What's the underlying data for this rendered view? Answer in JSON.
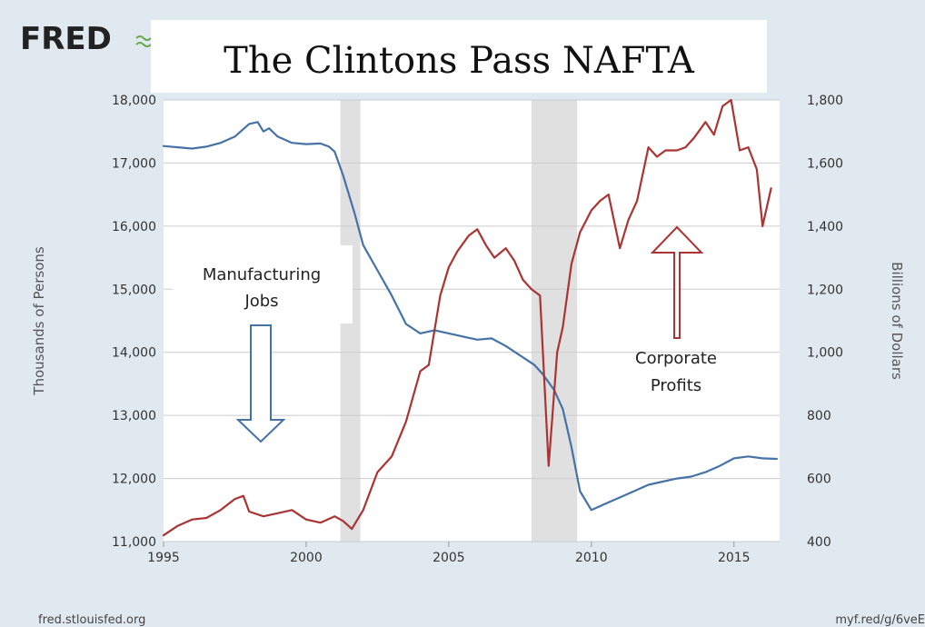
{
  "header": {
    "logo_text": "FRED",
    "title": "The Clintons Pass NAFTA"
  },
  "footer": {
    "source": "fred.stlouisfed.org",
    "short_url": "myf.red/g/6veE"
  },
  "annotations": {
    "jobs_line1": "Manufacturing",
    "jobs_line2": "Jobs",
    "profits_line1": "Corporate",
    "profits_line2": "Profits"
  },
  "colors": {
    "background": "#e1e9f0",
    "plot": "#ffffff",
    "recession": "#e0e0e0",
    "jobs": "#4572a7",
    "profits": "#aa3333"
  },
  "chart_data": {
    "type": "line",
    "title": "The Clintons Pass NAFTA",
    "y_left_label": "Thousands of Persons",
    "y_right_label": "Billions of Dollars",
    "xlim": [
      1995,
      2016.6
    ],
    "y_left_lim": [
      11000,
      18000
    ],
    "y_right_lim": [
      400,
      1800
    ],
    "x_ticks": [
      1995,
      2000,
      2005,
      2010,
      2015
    ],
    "y_left_ticks": [
      "11,000",
      "12,000",
      "13,000",
      "14,000",
      "15,000",
      "16,000",
      "17,000",
      "18,000"
    ],
    "y_right_ticks": [
      "400",
      "600",
      "800",
      "1,000",
      "1,200",
      "1,400",
      "1,600",
      "1,800"
    ],
    "recessions": [
      [
        2001.2,
        2001.9
      ],
      [
        2007.9,
        2009.5
      ]
    ],
    "grid": true,
    "series": [
      {
        "name": "Manufacturing Jobs",
        "axis": "left",
        "color": "#4572a7",
        "x": [
          1995.0,
          1995.5,
          1996.0,
          1996.5,
          1997.0,
          1997.5,
          1998.0,
          1998.3,
          1998.5,
          1998.7,
          1999.0,
          1999.5,
          2000.0,
          2000.5,
          2000.8,
          2001.0,
          2001.3,
          2001.7,
          2002.0,
          2002.5,
          2003.0,
          2003.5,
          2004.0,
          2004.5,
          2005.0,
          2005.5,
          2006.0,
          2006.5,
          2007.0,
          2007.5,
          2008.0,
          2008.3,
          2008.7,
          2009.0,
          2009.3,
          2009.6,
          2010.0,
          2010.5,
          2011.0,
          2011.5,
          2012.0,
          2012.5,
          2013.0,
          2013.5,
          2014.0,
          2014.5,
          2015.0,
          2015.5,
          2016.0,
          2016.5
        ],
        "values": [
          17270,
          17250,
          17230,
          17260,
          17320,
          17420,
          17620,
          17650,
          17500,
          17550,
          17420,
          17320,
          17300,
          17310,
          17260,
          17180,
          16800,
          16200,
          15700,
          15300,
          14900,
          14450,
          14300,
          14350,
          14300,
          14250,
          14200,
          14220,
          14100,
          13950,
          13800,
          13650,
          13400,
          13100,
          12500,
          11800,
          11500,
          11600,
          11700,
          11800,
          11900,
          11950,
          12000,
          12030,
          12100,
          12200,
          12320,
          12350,
          12320,
          12310
        ]
      },
      {
        "name": "Corporate Profits",
        "axis": "right",
        "color": "#aa3333",
        "x": [
          1995.0,
          1995.5,
          1996.0,
          1996.5,
          1997.0,
          1997.5,
          1997.8,
          1998.0,
          1998.5,
          1999.0,
          1999.5,
          2000.0,
          2000.5,
          2001.0,
          2001.3,
          2001.6,
          2002.0,
          2002.5,
          2003.0,
          2003.5,
          2004.0,
          2004.3,
          2004.7,
          2005.0,
          2005.3,
          2005.7,
          2006.0,
          2006.3,
          2006.6,
          2007.0,
          2007.3,
          2007.6,
          2007.9,
          2008.2,
          2008.5,
          2008.8,
          2009.0,
          2009.3,
          2009.6,
          2010.0,
          2010.3,
          2010.6,
          2011.0,
          2011.3,
          2011.6,
          2012.0,
          2012.3,
          2012.6,
          2013.0,
          2013.3,
          2013.6,
          2014.0,
          2014.3,
          2014.6,
          2014.9,
          2015.2,
          2015.5,
          2015.8,
          2016.0,
          2016.3
        ],
        "values": [
          420,
          450,
          470,
          475,
          500,
          535,
          545,
          495,
          480,
          490,
          500,
          470,
          460,
          480,
          465,
          440,
          500,
          620,
          670,
          780,
          940,
          960,
          1180,
          1270,
          1320,
          1370,
          1390,
          1340,
          1300,
          1330,
          1290,
          1230,
          1200,
          1180,
          640,
          1000,
          1080,
          1280,
          1380,
          1450,
          1480,
          1500,
          1330,
          1420,
          1480,
          1650,
          1620,
          1640,
          1640,
          1650,
          1680,
          1730,
          1690,
          1780,
          1800,
          1640,
          1650,
          1580,
          1400,
          1520
        ]
      }
    ]
  }
}
